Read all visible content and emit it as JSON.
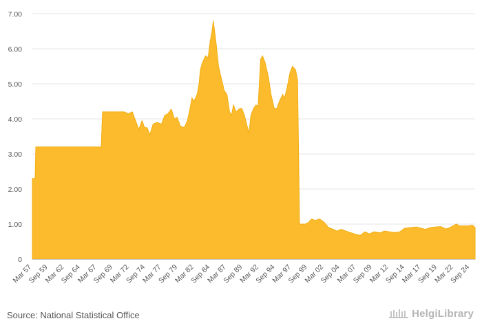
{
  "chart_data": {
    "type": "area",
    "title": "",
    "xlabel": "",
    "ylabel": "",
    "ylim": [
      0,
      7
    ],
    "grid": true,
    "color": "#fbbb2c",
    "y_ticks": [
      "0",
      "1.00",
      "2.00",
      "3.00",
      "4.00",
      "5.00",
      "6.00",
      "7.00"
    ],
    "x_ticks": [
      "Mar 57",
      "Sep 59",
      "Mar 62",
      "Sep 64",
      "Mar 67",
      "Sep 69",
      "Mar 72",
      "Sep 74",
      "Mar 77",
      "Sep 79",
      "Mar 82",
      "Sep 84",
      "Mar 87",
      "Sep 89",
      "Mar 92",
      "Sep 94",
      "Mar 97",
      "Sep 99",
      "Mar 02",
      "Sep 04",
      "Mar 07",
      "Sep 09",
      "Mar 12",
      "Sep 14",
      "Mar 17",
      "Sep 19",
      "Mar 22",
      "Sep 24"
    ],
    "x_start": 1957.17,
    "x_end": 2025.5,
    "points": [
      [
        1957.17,
        2.3
      ],
      [
        1957.6,
        2.3
      ],
      [
        1957.7,
        3.2
      ],
      [
        1967.8,
        3.2
      ],
      [
        1968.0,
        4.2
      ],
      [
        1971.3,
        4.2
      ],
      [
        1972.0,
        4.15
      ],
      [
        1972.6,
        4.2
      ],
      [
        1973.2,
        3.9
      ],
      [
        1973.6,
        3.7
      ],
      [
        1974.1,
        3.95
      ],
      [
        1974.5,
        3.75
      ],
      [
        1974.9,
        3.75
      ],
      [
        1975.3,
        3.55
      ],
      [
        1975.8,
        3.85
      ],
      [
        1976.4,
        3.9
      ],
      [
        1977.1,
        3.85
      ],
      [
        1977.6,
        4.1
      ],
      [
        1978.1,
        4.15
      ],
      [
        1978.6,
        4.28
      ],
      [
        1979.1,
        4.0
      ],
      [
        1979.5,
        4.05
      ],
      [
        1980.0,
        3.8
      ],
      [
        1980.6,
        3.75
      ],
      [
        1981.1,
        3.95
      ],
      [
        1981.5,
        4.3
      ],
      [
        1981.8,
        4.6
      ],
      [
        1982.1,
        4.5
      ],
      [
        1982.6,
        4.7
      ],
      [
        1982.9,
        5.0
      ],
      [
        1983.1,
        5.4
      ],
      [
        1983.4,
        5.6
      ],
      [
        1983.9,
        5.8
      ],
      [
        1984.3,
        5.75
      ],
      [
        1984.6,
        6.2
      ],
      [
        1984.9,
        6.5
      ],
      [
        1985.1,
        6.8
      ],
      [
        1985.5,
        6.2
      ],
      [
        1985.9,
        5.5
      ],
      [
        1986.4,
        5.1
      ],
      [
        1986.8,
        4.8
      ],
      [
        1987.2,
        4.7
      ],
      [
        1987.6,
        4.2
      ],
      [
        1987.9,
        4.1
      ],
      [
        1988.2,
        4.4
      ],
      [
        1988.6,
        4.2
      ],
      [
        1989.2,
        4.3
      ],
      [
        1989.5,
        4.3
      ],
      [
        1989.9,
        4.1
      ],
      [
        1990.3,
        3.8
      ],
      [
        1990.6,
        3.6
      ],
      [
        1990.9,
        4.1
      ],
      [
        1991.3,
        4.3
      ],
      [
        1991.7,
        4.4
      ],
      [
        1992.0,
        4.35
      ],
      [
        1992.4,
        5.7
      ],
      [
        1992.7,
        5.8
      ],
      [
        1993.1,
        5.6
      ],
      [
        1993.6,
        5.2
      ],
      [
        1994.0,
        4.7
      ],
      [
        1994.5,
        4.3
      ],
      [
        1994.9,
        4.3
      ],
      [
        1995.3,
        4.5
      ],
      [
        1995.8,
        4.7
      ],
      [
        1996.1,
        4.6
      ],
      [
        1996.5,
        4.9
      ],
      [
        1996.9,
        5.3
      ],
      [
        1997.3,
        5.5
      ],
      [
        1997.8,
        5.4
      ],
      [
        1998.1,
        5.1
      ],
      [
        1998.4,
        1.0
      ],
      [
        1999.3,
        1.0
      ],
      [
        1999.8,
        1.05
      ],
      [
        2000.3,
        1.15
      ],
      [
        2000.8,
        1.1
      ],
      [
        2001.5,
        1.15
      ],
      [
        2002.2,
        1.05
      ],
      [
        2002.9,
        0.9
      ],
      [
        2003.6,
        0.85
      ],
      [
        2004.2,
        0.8
      ],
      [
        2004.8,
        0.85
      ],
      [
        2005.6,
        0.8
      ],
      [
        2006.4,
        0.75
      ],
      [
        2007.2,
        0.7
      ],
      [
        2007.8,
        0.68
      ],
      [
        2008.5,
        0.78
      ],
      [
        2009.2,
        0.72
      ],
      [
        2009.9,
        0.78
      ],
      [
        2010.8,
        0.75
      ],
      [
        2011.5,
        0.8
      ],
      [
        2012.3,
        0.78
      ],
      [
        2013.1,
        0.76
      ],
      [
        2013.9,
        0.78
      ],
      [
        2014.6,
        0.88
      ],
      [
        2015.5,
        0.9
      ],
      [
        2016.4,
        0.92
      ],
      [
        2017.2,
        0.88
      ],
      [
        2017.8,
        0.85
      ],
      [
        2018.6,
        0.9
      ],
      [
        2019.4,
        0.92
      ],
      [
        2020.2,
        0.93
      ],
      [
        2021.0,
        0.86
      ],
      [
        2021.6,
        0.9
      ],
      [
        2022.2,
        0.96
      ],
      [
        2022.6,
        1.0
      ],
      [
        2023.1,
        0.95
      ],
      [
        2023.7,
        0.95
      ],
      [
        2024.4,
        0.95
      ],
      [
        2025.1,
        0.97
      ],
      [
        2025.5,
        0.9
      ]
    ]
  },
  "footer": {
    "source": "Source: National Statistical Office",
    "brand": "HelgiLibrary"
  }
}
